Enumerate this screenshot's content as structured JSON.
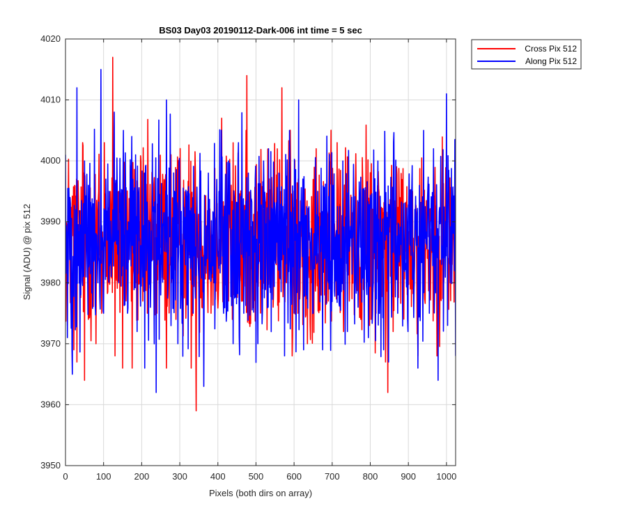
{
  "chart_data": {
    "type": "line",
    "title": "BS03 Day03 20190112-Dark-006 int time = 5 sec",
    "xlabel": "Pixels (both dirs on array)",
    "ylabel": "Signal (ADU) @ pix 512",
    "xlim": [
      0,
      1024
    ],
    "ylim": [
      3950,
      4020
    ],
    "xticks": [
      0,
      100,
      200,
      300,
      400,
      500,
      600,
      700,
      800,
      900,
      1000
    ],
    "yticks": [
      3950,
      3960,
      3970,
      3980,
      3990,
      4000,
      4010,
      4020
    ],
    "grid": true,
    "legend_position": "outside-top-right",
    "series": [
      {
        "name": "Cross Pix 512",
        "color": "#ff0000",
        "mean": 3987.5,
        "min": 3959,
        "max": 4017,
        "points": [
          [
            0,
            3987
          ],
          [
            5,
            3973
          ],
          [
            10,
            3992
          ],
          [
            15,
            3975
          ],
          [
            22,
            3969
          ],
          [
            30,
            3967
          ],
          [
            38,
            3990
          ],
          [
            45,
            4003
          ],
          [
            50,
            3964
          ],
          [
            60,
            3974
          ],
          [
            72,
            3985
          ],
          [
            80,
            3970
          ],
          [
            95,
            3975
          ],
          [
            102,
            4003
          ],
          [
            115,
            3980
          ],
          [
            124,
            4017
          ],
          [
            130,
            3968
          ],
          [
            140,
            3995
          ],
          [
            150,
            3966
          ],
          [
            160,
            3980
          ],
          [
            175,
            3966
          ],
          [
            185,
            3980
          ],
          [
            195,
            3990
          ],
          [
            203,
            3977
          ],
          [
            215,
            3975
          ],
          [
            228,
            3988
          ],
          [
            240,
            3975
          ],
          [
            252,
            3983
          ],
          [
            265,
            3966
          ],
          [
            278,
            3980
          ],
          [
            290,
            3974
          ],
          [
            305,
            3988
          ],
          [
            318,
            3979
          ],
          [
            330,
            3966
          ],
          [
            343,
            3959
          ],
          [
            358,
            3976
          ],
          [
            370,
            3985
          ],
          [
            382,
            3975
          ],
          [
            398,
            3993
          ],
          [
            410,
            4007
          ],
          [
            424,
            3977
          ],
          [
            438,
            3974
          ],
          [
            452,
            3990
          ],
          [
            465,
            3977
          ],
          [
            476,
            4014
          ],
          [
            490,
            3989
          ],
          [
            505,
            3985
          ],
          [
            518,
            3979
          ],
          [
            530,
            3985
          ],
          [
            545,
            3976
          ],
          [
            560,
            3986
          ],
          [
            568,
            4012
          ],
          [
            580,
            3980
          ],
          [
            595,
            3968
          ],
          [
            610,
            3975
          ],
          [
            620,
            3988
          ],
          [
            635,
            3970
          ],
          [
            645,
            3980
          ],
          [
            658,
            4002
          ],
          [
            670,
            3990
          ],
          [
            680,
            3978
          ],
          [
            690,
            3977
          ],
          [
            700,
            3986
          ],
          [
            715,
            3988
          ],
          [
            730,
            3972
          ],
          [
            745,
            3977
          ],
          [
            760,
            3992
          ],
          [
            775,
            3974
          ],
          [
            790,
            3989
          ],
          [
            802,
            3974
          ],
          [
            815,
            3975
          ],
          [
            828,
            3990
          ],
          [
            840,
            3967
          ],
          [
            846,
            3962
          ],
          [
            860,
            3972
          ],
          [
            872,
            3983
          ],
          [
            885,
            3977
          ],
          [
            898,
            3990
          ],
          [
            910,
            3979
          ],
          [
            925,
            3968
          ],
          [
            938,
            3976
          ],
          [
            950,
            3984
          ],
          [
            962,
            3985
          ],
          [
            975,
            3968
          ],
          [
            985,
            3978
          ],
          [
            995,
            3986
          ],
          [
            1005,
            3984
          ],
          [
            1015,
            3983
          ],
          [
            1024,
            3982
          ]
        ]
      },
      {
        "name": "Along Pix 512",
        "color": "#0000ff",
        "mean": 3987,
        "min": 3962,
        "max": 4015,
        "points": [
          [
            0,
            4001
          ],
          [
            5,
            3971
          ],
          [
            12,
            3994
          ],
          [
            18,
            3965
          ],
          [
            24,
            3984
          ],
          [
            30,
            4012
          ],
          [
            40,
            3978
          ],
          [
            50,
            4000
          ],
          [
            60,
            3996
          ],
          [
            72,
            3985
          ],
          [
            85,
            3980
          ],
          [
            93,
            4015
          ],
          [
            100,
            3975
          ],
          [
            115,
            3995
          ],
          [
            128,
            4008
          ],
          [
            140,
            3980
          ],
          [
            152,
            4005
          ],
          [
            163,
            3975
          ],
          [
            174,
            4004
          ],
          [
            188,
            3972
          ],
          [
            200,
            3985
          ],
          [
            208,
            3966
          ],
          [
            220,
            3980
          ],
          [
            238,
            3962
          ],
          [
            250,
            3978
          ],
          [
            265,
            4010
          ],
          [
            280,
            3984
          ],
          [
            295,
            3970
          ],
          [
            310,
            3990
          ],
          [
            320,
            3995
          ],
          [
            335,
            3975
          ],
          [
            350,
            3980
          ],
          [
            363,
            3963
          ],
          [
            375,
            3998
          ],
          [
            390,
            3980
          ],
          [
            403,
            3995
          ],
          [
            415,
            3975
          ],
          [
            428,
            4000
          ],
          [
            440,
            3970
          ],
          [
            454,
            4003
          ],
          [
            468,
            3975
          ],
          [
            480,
            3998
          ],
          [
            495,
            3985
          ],
          [
            505,
            3970
          ],
          [
            520,
            4000
          ],
          [
            532,
            3976
          ],
          [
            547,
            3985
          ],
          [
            560,
            3998
          ],
          [
            575,
            3968
          ],
          [
            588,
            4005
          ],
          [
            600,
            3975
          ],
          [
            612,
            4010
          ],
          [
            625,
            3969
          ],
          [
            638,
            3987
          ],
          [
            650,
            3975
          ],
          [
            662,
            3995
          ],
          [
            675,
            3969
          ],
          [
            690,
            3980
          ],
          [
            702,
            3996
          ],
          [
            715,
            3978
          ],
          [
            728,
            4000
          ],
          [
            740,
            3972
          ],
          [
            755,
            3990
          ],
          [
            768,
            3976
          ],
          [
            782,
            3990
          ],
          [
            795,
            3971
          ],
          [
            808,
            3980
          ],
          [
            820,
            4000
          ],
          [
            835,
            3969
          ],
          [
            848,
            3967
          ],
          [
            860,
            3985
          ],
          [
            872,
            3975
          ],
          [
            887,
            3993
          ],
          [
            899,
            3972
          ],
          [
            912,
            3985
          ],
          [
            925,
            3966
          ],
          [
            940,
            4005
          ],
          [
            955,
            3975
          ],
          [
            966,
            4002
          ],
          [
            978,
            3964
          ],
          [
            990,
            3985
          ],
          [
            1000,
            4011
          ],
          [
            1010,
            3980
          ],
          [
            1024,
            3968
          ]
        ]
      }
    ]
  }
}
